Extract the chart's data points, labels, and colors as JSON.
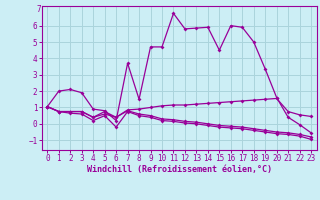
{
  "xlabel": "Windchill (Refroidissement éolien,°C)",
  "bg_color": "#cceef5",
  "grid_color": "#aad4dc",
  "line_color": "#990099",
  "xlim": [
    -0.5,
    23.5
  ],
  "ylim": [
    -1.6,
    7.2
  ],
  "yticks": [
    -1,
    0,
    1,
    2,
    3,
    4,
    5,
    6
  ],
  "xticks": [
    0,
    1,
    2,
    3,
    4,
    5,
    6,
    7,
    8,
    9,
    10,
    11,
    12,
    13,
    14,
    15,
    16,
    17,
    18,
    19,
    20,
    21,
    22,
    23
  ],
  "series1_x": [
    0,
    1,
    2,
    3,
    4,
    5,
    6,
    7,
    8,
    9,
    10,
    11,
    12,
    13,
    14,
    15,
    16,
    17,
    18,
    19,
    20,
    21,
    22,
    23
  ],
  "series1_y": [
    1.05,
    2.0,
    2.1,
    1.9,
    0.9,
    0.8,
    0.2,
    3.7,
    1.5,
    4.7,
    4.7,
    6.75,
    5.8,
    5.85,
    5.9,
    4.5,
    6.0,
    5.9,
    5.0,
    3.35,
    1.6,
    0.4,
    -0.05,
    -0.55
  ],
  "series2_x": [
    0,
    1,
    2,
    3,
    4,
    5,
    6,
    7,
    8,
    9,
    10,
    11,
    12,
    13,
    14,
    15,
    16,
    17,
    18,
    19,
    20,
    21,
    22,
    23
  ],
  "series2_y": [
    1.05,
    0.75,
    0.75,
    0.75,
    0.4,
    0.75,
    0.4,
    0.85,
    0.9,
    1.0,
    1.1,
    1.15,
    1.15,
    1.2,
    1.25,
    1.3,
    1.35,
    1.4,
    1.45,
    1.5,
    1.55,
    0.75,
    0.55,
    0.45
  ],
  "series3_x": [
    0,
    1,
    2,
    3,
    4,
    5,
    6,
    7,
    8,
    9,
    10,
    11,
    12,
    13,
    14,
    15,
    16,
    17,
    18,
    19,
    20,
    21,
    22,
    23
  ],
  "series3_y": [
    1.05,
    0.75,
    0.75,
    0.75,
    0.4,
    0.6,
    0.4,
    0.8,
    0.6,
    0.5,
    0.3,
    0.25,
    0.15,
    0.1,
    0.0,
    -0.1,
    -0.15,
    -0.2,
    -0.3,
    -0.4,
    -0.5,
    -0.55,
    -0.65,
    -0.8
  ],
  "series4_x": [
    0,
    1,
    2,
    3,
    4,
    5,
    6,
    7,
    8,
    9,
    10,
    11,
    12,
    13,
    14,
    15,
    16,
    17,
    18,
    19,
    20,
    21,
    22,
    23
  ],
  "series4_y": [
    1.05,
    0.75,
    0.65,
    0.6,
    0.2,
    0.5,
    -0.2,
    0.75,
    0.5,
    0.4,
    0.2,
    0.15,
    0.05,
    0.0,
    -0.1,
    -0.2,
    -0.25,
    -0.3,
    -0.4,
    -0.5,
    -0.6,
    -0.65,
    -0.75,
    -0.95
  ]
}
